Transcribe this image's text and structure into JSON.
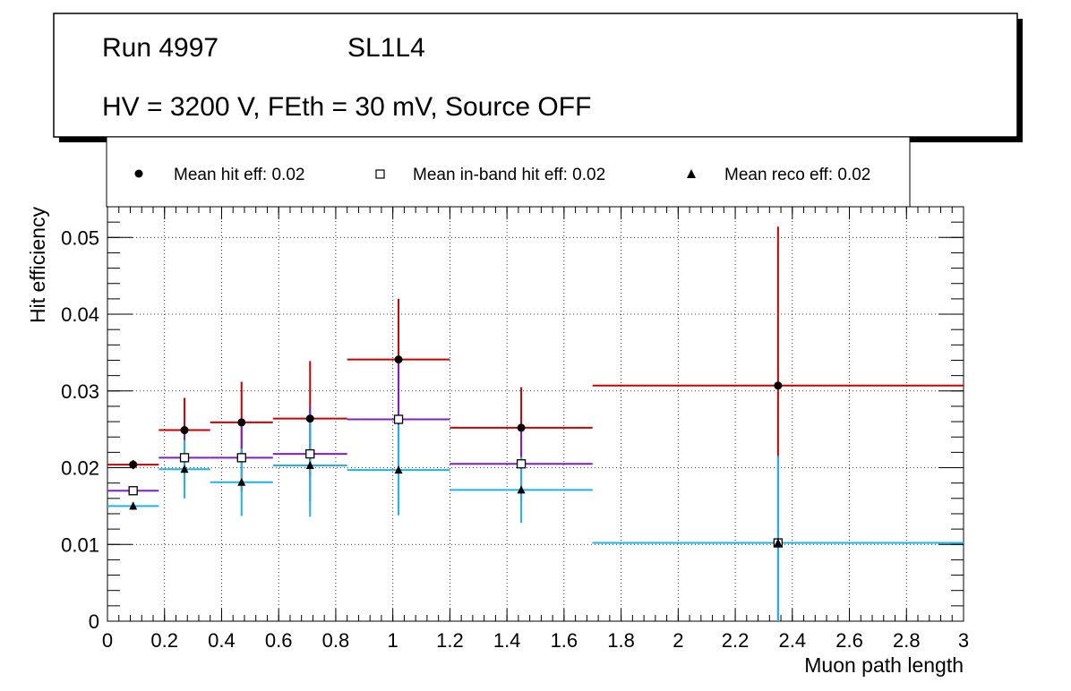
{
  "title_box": {
    "line1_run": "Run 4997",
    "line1_layer": "SL1L4",
    "line2": "HV = 3200 V, FEth = 30 mV, Source OFF"
  },
  "legend": {
    "entries": [
      {
        "label": "Mean hit  eff: 0.02",
        "marker": "circle-filled"
      },
      {
        "label": "Mean in-band hit eff: 0.02",
        "marker": "square-open"
      },
      {
        "label": "Mean reco eff: 0.02",
        "marker": "triangle-filled"
      }
    ]
  },
  "chart_data": {
    "type": "scatter",
    "title": "",
    "xlabel": "Muon path length",
    "ylabel": "Hit efficiency",
    "xlim": [
      0,
      3
    ],
    "ylim": [
      0,
      0.054
    ],
    "grid": true,
    "x_ticks": [
      0,
      0.2,
      0.4,
      0.6,
      0.8,
      1,
      1.2,
      1.4,
      1.6,
      1.8,
      2,
      2.2,
      2.4,
      2.6,
      2.8,
      3
    ],
    "x_tick_labels": [
      "0",
      "0.2",
      "0.4",
      "0.6",
      "0.8",
      "1",
      "1.2",
      "1.4",
      "1.6",
      "1.8",
      "2",
      "2.2",
      "2.4",
      "2.6",
      "2.8",
      "3"
    ],
    "y_ticks": [
      0,
      0.01,
      0.02,
      0.03,
      0.04,
      0.05
    ],
    "y_tick_labels": [
      "0",
      "0.01",
      "0.02",
      "0.03",
      "0.04",
      "0.05"
    ],
    "series": [
      {
        "name": "Mean hit  eff: 0.02",
        "color": "#cc0000",
        "marker": "circle-filled",
        "points": [
          {
            "x": 0.09,
            "xlo": 0.0,
            "xhi": 0.18,
            "y": 0.0204,
            "ylo": 0.0198,
            "yhi": 0.021
          },
          {
            "x": 0.27,
            "xlo": 0.18,
            "xhi": 0.36,
            "y": 0.0249,
            "ylo": 0.0209,
            "yhi": 0.0291
          },
          {
            "x": 0.47,
            "xlo": 0.36,
            "xhi": 0.58,
            "y": 0.0259,
            "ylo": 0.0207,
            "yhi": 0.0312
          },
          {
            "x": 0.71,
            "xlo": 0.58,
            "xhi": 0.84,
            "y": 0.0264,
            "ylo": 0.0188,
            "yhi": 0.0339
          },
          {
            "x": 1.02,
            "xlo": 0.84,
            "xhi": 1.2,
            "y": 0.0341,
            "ylo": 0.0262,
            "yhi": 0.042
          },
          {
            "x": 1.45,
            "xlo": 1.2,
            "xhi": 1.7,
            "y": 0.0252,
            "ylo": 0.02,
            "yhi": 0.0305
          },
          {
            "x": 2.35,
            "xlo": 1.7,
            "xhi": 3.0,
            "y": 0.0307,
            "ylo": 0.0215,
            "yhi": 0.0514
          }
        ]
      },
      {
        "name": "Mean in-band hit eff: 0.02",
        "color": "#7f1fc8",
        "marker": "square-open",
        "points": [
          {
            "x": 0.09,
            "xlo": 0.0,
            "xhi": 0.18,
            "y": 0.017,
            "ylo": 0.0165,
            "yhi": 0.0175
          },
          {
            "x": 0.27,
            "xlo": 0.18,
            "xhi": 0.36,
            "y": 0.0213,
            "ylo": 0.0178,
            "yhi": 0.0248
          },
          {
            "x": 0.47,
            "xlo": 0.36,
            "xhi": 0.58,
            "y": 0.0213,
            "ylo": 0.0168,
            "yhi": 0.0258
          },
          {
            "x": 0.71,
            "xlo": 0.58,
            "xhi": 0.84,
            "y": 0.0218,
            "ylo": 0.0156,
            "yhi": 0.028
          },
          {
            "x": 1.02,
            "xlo": 0.84,
            "xhi": 1.2,
            "y": 0.0263,
            "ylo": 0.0193,
            "yhi": 0.0335
          },
          {
            "x": 1.45,
            "xlo": 1.2,
            "xhi": 1.7,
            "y": 0.0205,
            "ylo": 0.0157,
            "yhi": 0.0252
          },
          {
            "x": 2.35,
            "xlo": 1.7,
            "xhi": 3.0,
            "y": 0.0102,
            "ylo": 0.0,
            "yhi": 0.0215
          }
        ]
      },
      {
        "name": "Mean reco eff: 0.02",
        "color": "#1fb4e8",
        "marker": "triangle-filled",
        "points": [
          {
            "x": 0.09,
            "xlo": 0.0,
            "xhi": 0.18,
            "y": 0.015,
            "ylo": 0.0145,
            "yhi": 0.0155
          },
          {
            "x": 0.27,
            "xlo": 0.18,
            "xhi": 0.36,
            "y": 0.0198,
            "ylo": 0.016,
            "yhi": 0.0236
          },
          {
            "x": 0.47,
            "xlo": 0.36,
            "xhi": 0.58,
            "y": 0.0181,
            "ylo": 0.0137,
            "yhi": 0.0225
          },
          {
            "x": 0.71,
            "xlo": 0.58,
            "xhi": 0.84,
            "y": 0.0203,
            "ylo": 0.0136,
            "yhi": 0.027
          },
          {
            "x": 1.02,
            "xlo": 0.84,
            "xhi": 1.2,
            "y": 0.0197,
            "ylo": 0.0138,
            "yhi": 0.0256
          },
          {
            "x": 1.45,
            "xlo": 1.2,
            "xhi": 1.7,
            "y": 0.0171,
            "ylo": 0.0128,
            "yhi": 0.0214
          },
          {
            "x": 2.35,
            "xlo": 1.7,
            "xhi": 3.0,
            "y": 0.0102,
            "ylo": 0.0,
            "yhi": 0.0215
          }
        ]
      }
    ]
  }
}
